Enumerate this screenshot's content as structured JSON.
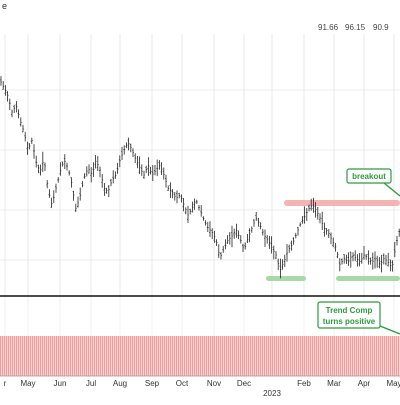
{
  "header": {
    "symbol_fragment": "e",
    "quotes": [
      "91.66",
      "96.15",
      "90.9"
    ]
  },
  "chart_data": [
    {
      "type": "ohlc",
      "panel": "price",
      "x_labels": [
        "r",
        "May",
        "Jun",
        "Jul",
        "Aug",
        "Sep",
        "Oct",
        "Nov",
        "Dec",
        "2023",
        "Feb",
        "Mar",
        "Apr",
        "May"
      ],
      "year_label": "2023",
      "close_path": [
        [
          0,
          80
        ],
        [
          4,
          88
        ],
        [
          8,
          96
        ],
        [
          12,
          112
        ],
        [
          16,
          105
        ],
        [
          20,
          120
        ],
        [
          24,
          132
        ],
        [
          28,
          150
        ],
        [
          32,
          140
        ],
        [
          36,
          162
        ],
        [
          40,
          172
        ],
        [
          44,
          158
        ],
        [
          48,
          190
        ],
        [
          52,
          205
        ],
        [
          56,
          188
        ],
        [
          60,
          172
        ],
        [
          64,
          160
        ],
        [
          68,
          168
        ],
        [
          72,
          185
        ],
        [
          76,
          210
        ],
        [
          80,
          196
        ],
        [
          84,
          178
        ],
        [
          88,
          168
        ],
        [
          92,
          175
        ],
        [
          96,
          160
        ],
        [
          100,
          170
        ],
        [
          104,
          188
        ],
        [
          108,
          192
        ],
        [
          112,
          180
        ],
        [
          116,
          175
        ],
        [
          120,
          160
        ],
        [
          124,
          150
        ],
        [
          128,
          142
        ],
        [
          132,
          150
        ],
        [
          136,
          160
        ],
        [
          140,
          168
        ],
        [
          144,
          175
        ],
        [
          148,
          165
        ],
        [
          152,
          175
        ],
        [
          156,
          170
        ],
        [
          160,
          165
        ],
        [
          164,
          175
        ],
        [
          168,
          188
        ],
        [
          172,
          192
        ],
        [
          176,
          198
        ],
        [
          180,
          195
        ],
        [
          184,
          205
        ],
        [
          188,
          215
        ],
        [
          192,
          208
        ],
        [
          196,
          200
        ],
        [
          200,
          210
        ],
        [
          204,
          220
        ],
        [
          208,
          228
        ],
        [
          212,
          232
        ],
        [
          216,
          240
        ],
        [
          220,
          258
        ],
        [
          224,
          248
        ],
        [
          228,
          240
        ],
        [
          232,
          236
        ],
        [
          236,
          230
        ],
        [
          240,
          238
        ],
        [
          244,
          250
        ],
        [
          248,
          238
        ],
        [
          252,
          228
        ],
        [
          256,
          218
        ],
        [
          260,
          225
        ],
        [
          264,
          235
        ],
        [
          268,
          240
        ],
        [
          272,
          248
        ],
        [
          276,
          255
        ],
        [
          280,
          270
        ],
        [
          284,
          262
        ],
        [
          288,
          250
        ],
        [
          292,
          245
        ],
        [
          296,
          235
        ],
        [
          300,
          225
        ],
        [
          304,
          218
        ],
        [
          308,
          210
        ],
        [
          312,
          205
        ],
        [
          316,
          210
        ],
        [
          320,
          218
        ],
        [
          324,
          228
        ],
        [
          328,
          232
        ],
        [
          332,
          240
        ],
        [
          336,
          248
        ],
        [
          340,
          265
        ],
        [
          344,
          258
        ],
        [
          348,
          262
        ],
        [
          352,
          255
        ],
        [
          356,
          258
        ],
        [
          360,
          262
        ],
        [
          364,
          255
        ],
        [
          368,
          258
        ],
        [
          372,
          262
        ],
        [
          376,
          258
        ],
        [
          380,
          265
        ],
        [
          384,
          258
        ],
        [
          388,
          262
        ],
        [
          392,
          268
        ],
        [
          396,
          245
        ],
        [
          400,
          228
        ]
      ],
      "resistance_line": {
        "label": "resistance",
        "color": "#f4a6a6"
      },
      "support_lines": {
        "color": "#9fd39f"
      },
      "annotations": [
        {
          "text": "breakout",
          "color": "#2e9b3f"
        }
      ]
    },
    {
      "type": "bar",
      "panel": "indicator",
      "series": [
        {
          "name": "Trend Comp",
          "state": "positive"
        }
      ],
      "bar_color": "#f29a9a",
      "annotations": [
        {
          "text": "Trend Comp turns positive",
          "lines": [
            "Trend Comp",
            "turns positive"
          ],
          "color": "#2e9b3f"
        }
      ]
    }
  ]
}
